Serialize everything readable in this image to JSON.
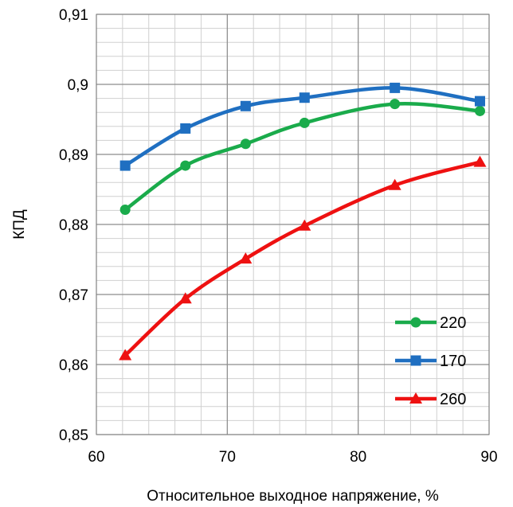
{
  "chart_data": {
    "type": "line",
    "title": "",
    "xlabel": "Относительное выходное напряжение, %",
    "ylabel": "КПД",
    "xlim": [
      60,
      90
    ],
    "ylim": [
      0.85,
      0.91
    ],
    "x_ticks": [
      60,
      70,
      80,
      90
    ],
    "x_tick_labels": [
      "60",
      "70",
      "80",
      "90"
    ],
    "y_ticks": [
      0.85,
      0.86,
      0.87,
      0.88,
      0.89,
      0.9,
      0.91
    ],
    "y_tick_labels": [
      "0,85",
      "0,86",
      "0,87",
      "0,88",
      "0,89",
      "0,9",
      "0,91"
    ],
    "grid": true,
    "legend_position": "bottom-right",
    "series": [
      {
        "name": "220",
        "color": "#1aab4b",
        "marker": "circle",
        "x": [
          62.2,
          66.8,
          71.4,
          75.9,
          82.8,
          89.3
        ],
        "values": [
          0.8821,
          0.8884,
          0.8915,
          0.8945,
          0.8972,
          0.8962
        ]
      },
      {
        "name": "170",
        "color": "#1f6fc1",
        "marker": "square",
        "x": [
          62.2,
          66.8,
          71.4,
          75.9,
          82.8,
          89.3
        ],
        "values": [
          0.8884,
          0.8937,
          0.8969,
          0.8981,
          0.8995,
          0.8976
        ]
      },
      {
        "name": "260",
        "color": "#ee1111",
        "marker": "triangle",
        "x": [
          62.2,
          66.8,
          71.4,
          75.9,
          82.8,
          89.3
        ],
        "values": [
          0.8613,
          0.8694,
          0.8751,
          0.8798,
          0.8856,
          0.8889
        ]
      }
    ]
  }
}
